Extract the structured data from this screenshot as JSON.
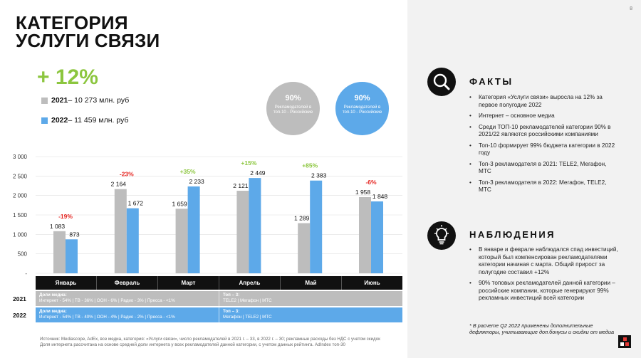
{
  "page_number": "8",
  "title": {
    "line1": "КАТЕГОРИЯ",
    "line2": "УСЛУГИ СВЯЗИ"
  },
  "growth": "+ 12%",
  "legend": [
    {
      "year": "2021",
      "text": " – 10 273 млн. руб",
      "color": "#bdbdbd"
    },
    {
      "year": "2022",
      "text": " – 11 459 млн. руб",
      "color": "#5da9e9"
    }
  ],
  "circles": [
    {
      "pct": "90%",
      "caption": "Рекламодателей в топ-10 - Российские",
      "color": "#bdbdbd"
    },
    {
      "pct": "90%",
      "caption": "Рекламодателей в топ-10 - Российские",
      "color": "#5da9e9"
    }
  ],
  "chart_data": {
    "type": "bar",
    "categories": [
      "Январь",
      "Февраль",
      "Март",
      "Апрель",
      "Май",
      "Июнь"
    ],
    "series": [
      {
        "name": "2021",
        "values": [
          1083,
          2164,
          1659,
          2121,
          1289,
          1958
        ],
        "labels": [
          "1 083",
          "2 164",
          "1 659",
          "2 121",
          "1 289",
          "1 958"
        ],
        "color": "#bdbdbd"
      },
      {
        "name": "2022",
        "values": [
          873,
          1672,
          2233,
          2449,
          2383,
          1848
        ],
        "labels": [
          "873",
          "1 672",
          "2 233",
          "2 449",
          "2 383",
          "1 848"
        ],
        "color": "#5da9e9"
      }
    ],
    "changes": [
      "-19%",
      "-23%",
      "+35%",
      "+15%",
      "+85%",
      "-6%"
    ],
    "change_colors": {
      "negative": "#e52521",
      "positive": "#8cc63f"
    },
    "y_ticks": [
      "3 000",
      "2 500",
      "2 000",
      "1 500",
      "1 000",
      "500",
      "-"
    ],
    "ylim": [
      0,
      3000
    ],
    "grid": true
  },
  "months_row": [
    "Январь",
    "Февраль",
    "Март",
    "Апрель",
    "Май",
    "Июнь"
  ],
  "media": {
    "y2021": {
      "year": "2021",
      "share_title": "Доли медиа:",
      "share_text": "Интернет - 54% | ТВ - 36% | OOH - 6% | Радио - 3% | Пресса - <1%",
      "top_title": "Топ – 3:",
      "top_text": "TELE2 | Мегафон | МТС"
    },
    "y2022": {
      "year": "2022",
      "share_title": "Доли медиа:",
      "share_text": "Интернет - 54% | ТВ - 40% | OOH - 4% | Радио - 2% | Пресса - <1%",
      "top_title": "Топ – 3:",
      "top_text": "Мегафон | TELE2 | МТС"
    }
  },
  "footnote": {
    "line1": "Источник: Mediascope, AdEx, все медиа, категория: «Услуги связи», число рекламодателей в 2021 г. – 33, в 2022 г. – 30; рекламные расходы без НДС с учетом скидок",
    "line2": "Доля интернета рассчитана на основе средней доли интернета у всех рекламодателей данной категории, с учетом данных рейтинга. AdIndex топ-30"
  },
  "facts": {
    "title": "ФАКТЫ",
    "icon": "magnifier-icon",
    "items": [
      "Категория «Услуги связи» выросла на 12% за первое полугодие 2022",
      "Интернет – основное медиа",
      "Среди ТОП-10 рекламодателей категории 90% в 2021/22 являются российскими компаниями",
      "Топ-10 формирует 99% бюджета категории в 2022 году",
      "Топ-3 рекламодателя в 2021: TELE2, Мегафон, МТС",
      "Топ-3 рекламодателя в 2022: Мегафон, TELE2, МТС"
    ]
  },
  "observations": {
    "title": "НАБЛЮДЕНИЯ",
    "icon": "lightbulb-icon",
    "items": [
      "В январе и феврале наблюдался спад инвестиций, который был компенсирован рекламодателями категории начиная с марта. Общий прирост за полугодие составил +12%",
      "90% топовых рекламодателей данной категории – российские компании, которые генерируют 99% рекламных инвестиций всей категории"
    ],
    "note": "* В расчете Q2 2022 применены дополнительные дефляторы, учитывающие доп.бонусы и скидки от медиа"
  }
}
